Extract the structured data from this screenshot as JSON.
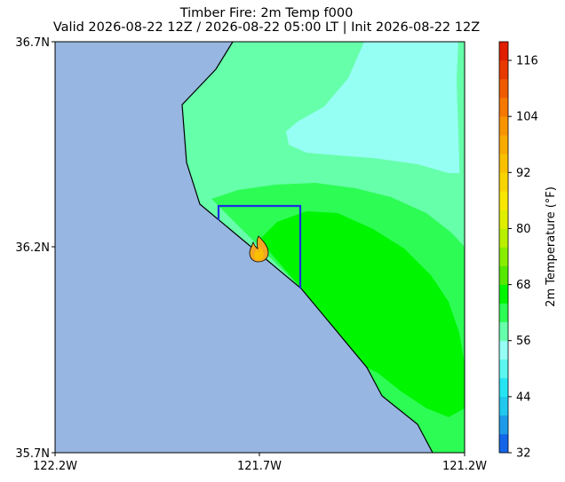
{
  "title": {
    "line1": "Timber Fire: 2m Temp f000",
    "line2": "Valid 2026-08-22 12Z / 2026-08-22 05:00 LT | Init 2026-08-22 12Z"
  },
  "map": {
    "lat_labels": [
      "36.7N",
      "36.2N",
      "35.7N"
    ],
    "lon_labels": [
      "122.2W",
      "121.7W",
      "121.2W"
    ],
    "ocean_color": "#97b6e1",
    "coastline_color": "#000000",
    "fire_marker": "fire-icon",
    "fire_color": "#f5a623",
    "domain_box_color": "#1f2fe0"
  },
  "colorbar": {
    "label": "2m Temperature (°F)",
    "ticks": [
      "32",
      "44",
      "56",
      "68",
      "80",
      "92",
      "104",
      "116"
    ],
    "range": [
      32,
      120
    ],
    "bands": [
      {
        "from": 32,
        "to": 36,
        "color": "#1565e8"
      },
      {
        "from": 36,
        "to": 40,
        "color": "#1e9be8"
      },
      {
        "from": 40,
        "to": 44,
        "color": "#22c8ee"
      },
      {
        "from": 44,
        "to": 48,
        "color": "#27e4f2"
      },
      {
        "from": 48,
        "to": 52,
        "color": "#5cf5f0"
      },
      {
        "from": 52,
        "to": 56,
        "color": "#96fff4"
      },
      {
        "from": 56,
        "to": 60,
        "color": "#66ffaa"
      },
      {
        "from": 60,
        "to": 64,
        "color": "#2dfc55"
      },
      {
        "from": 64,
        "to": 68,
        "color": "#00f500"
      },
      {
        "from": 68,
        "to": 72,
        "color": "#55e800"
      },
      {
        "from": 72,
        "to": 76,
        "color": "#88ee00"
      },
      {
        "from": 76,
        "to": 80,
        "color": "#b8f000"
      },
      {
        "from": 80,
        "to": 84,
        "color": "#e0ee00"
      },
      {
        "from": 84,
        "to": 88,
        "color": "#f8e800"
      },
      {
        "from": 88,
        "to": 92,
        "color": "#f8d400"
      },
      {
        "from": 92,
        "to": 96,
        "color": "#f8c000"
      },
      {
        "from": 96,
        "to": 100,
        "color": "#f8ab00"
      },
      {
        "from": 100,
        "to": 104,
        "color": "#f89400"
      },
      {
        "from": 104,
        "to": 108,
        "color": "#f57800"
      },
      {
        "from": 108,
        "to": 112,
        "color": "#f05a00"
      },
      {
        "from": 112,
        "to": 116,
        "color": "#e83a00"
      },
      {
        "from": 116,
        "to": 120,
        "color": "#e01e00"
      }
    ]
  }
}
